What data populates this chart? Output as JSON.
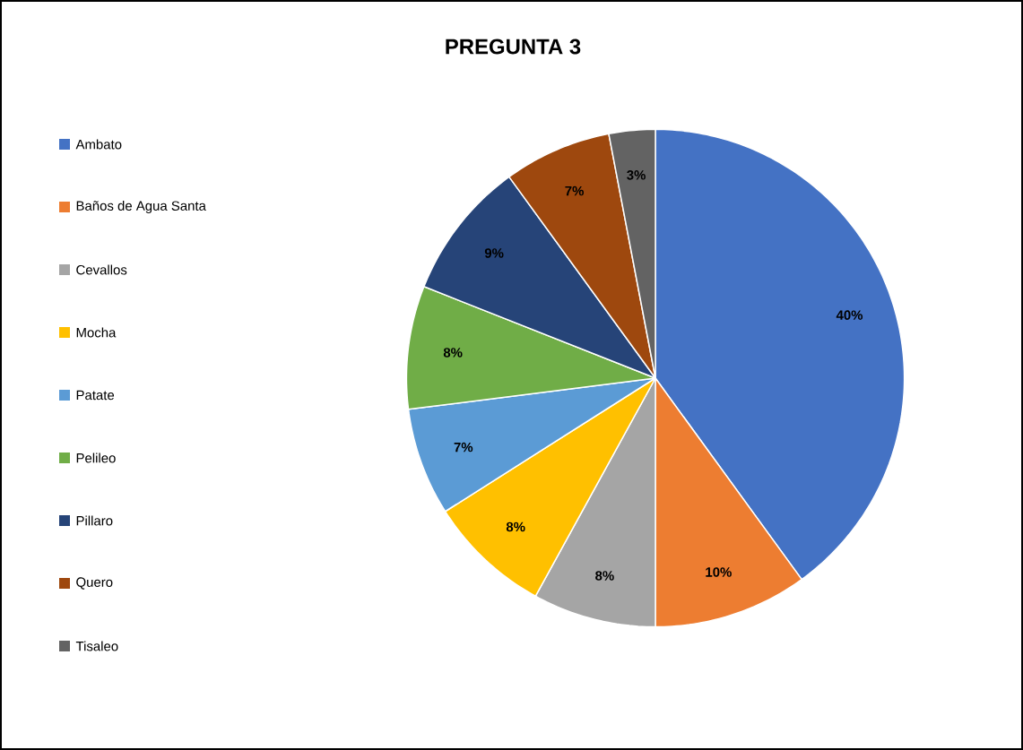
{
  "chart_data": {
    "type": "pie",
    "title": "PREGUNTA 3",
    "categories": [
      "Ambato",
      "Baños de Agua Santa",
      "Cevallos",
      "Mocha",
      "Patate",
      "Pelileo",
      "Pillaro",
      "Quero",
      "Tisaleo"
    ],
    "values": [
      40,
      10,
      8,
      8,
      7,
      8,
      9,
      7,
      3
    ],
    "value_labels": [
      "40%",
      "10%",
      "8%",
      "8%",
      "7%",
      "8%",
      "9%",
      "7%",
      "3%"
    ],
    "colors": [
      "#4472c4",
      "#ed7d31",
      "#a5a5a5",
      "#ffc000",
      "#5b9bd5",
      "#70ad47",
      "#264478",
      "#9e480e",
      "#636363"
    ],
    "legend": "left"
  }
}
